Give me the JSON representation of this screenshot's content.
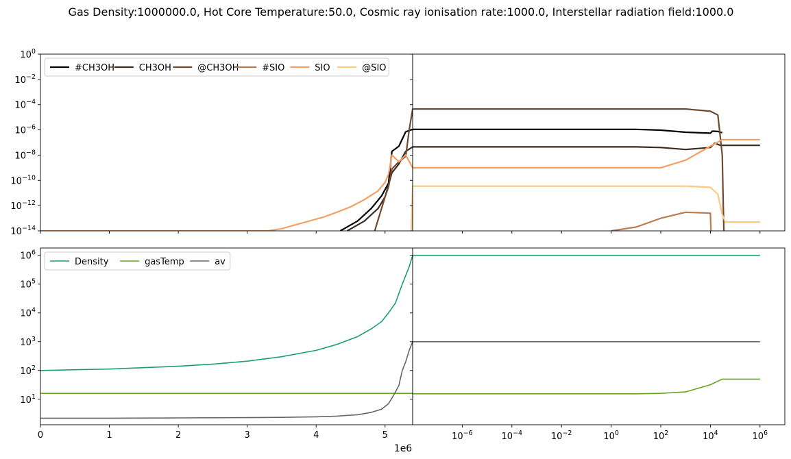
{
  "figure": {
    "title": "Gas Density:1000000.0, Hot Core Temperature:50.0, Cosmic ray ionisation rate:1000.0, Interstellar radiation field:1000.0",
    "x_offset_label": "1e6"
  },
  "chart_data": [
    {
      "panel": "top-left",
      "type": "line",
      "x_scale": "linear",
      "y_scale": "log",
      "xlim": [
        0,
        5.4
      ],
      "x_unit_multiplier": "1e6",
      "ylim": [
        1e-14,
        1
      ],
      "yticks": [
        "10^0",
        "10^-2",
        "10^-4",
        "10^-6",
        "10^-8",
        "10^-10",
        "10^-12",
        "10^-14"
      ],
      "legend": {
        "placement": "top-left",
        "columns": 6
      },
      "series": [
        {
          "name": "#CH3OH",
          "color": "#000000",
          "x": [
            4.35,
            4.6,
            4.8,
            4.95,
            5.05,
            5.1,
            5.2,
            5.3,
            5.4
          ],
          "y": [
            1e-14,
            6e-14,
            6e-13,
            6e-12,
            6e-11,
            2e-08,
            5e-08,
            7e-07,
            1.1e-06
          ]
        },
        {
          "name": "CH3OH",
          "color": "#3b2a1e",
          "x": [
            4.45,
            4.7,
            4.9,
            5.0,
            5.1,
            5.2,
            5.3,
            5.4
          ],
          "y": [
            1e-14,
            6e-14,
            6e-13,
            5e-12,
            4e-10,
            2e-09,
            2e-08,
            4.5e-08
          ]
        },
        {
          "name": "@CH3OH",
          "color": "#6f4a32",
          "x": [
            4.85,
            5.0,
            5.05,
            5.1,
            5.2,
            5.3,
            5.35,
            5.4
          ],
          "y": [
            1e-14,
            5e-12,
            3e-11,
            8e-10,
            3e-09,
            8e-09,
            1e-06,
            4.5e-05
          ]
        },
        {
          "name": "#SIO",
          "color": "#b87a4f",
          "x": [],
          "y": []
        },
        {
          "name": "SIO",
          "color": "#f2a064",
          "x": [
            0,
            3.3,
            3.5,
            3.7,
            3.9,
            4.1,
            4.3,
            4.5,
            4.7,
            4.9,
            5.0,
            5.05,
            5.1,
            5.2,
            5.3,
            5.4
          ],
          "y": [
            1e-14,
            1e-14,
            1.5e-14,
            3e-14,
            6e-14,
            1.2e-13,
            3e-13,
            8e-13,
            3e-12,
            1.5e-11,
            7e-11,
            3e-10,
            1e-08,
            3e-09,
            1e-08,
            1e-09
          ]
        },
        {
          "name": "@SIO",
          "color": "#fbc980",
          "x": [
            5.38,
            5.4
          ],
          "y": [
            1e-14,
            3.5e-11
          ]
        }
      ]
    },
    {
      "panel": "top-right",
      "type": "line",
      "x_scale": "log",
      "y_scale": "log",
      "xlim": [
        1e-08,
        10000000.0
      ],
      "ylim": [
        1e-14,
        1
      ],
      "series": [
        {
          "name": "#CH3OH",
          "color": "#000000",
          "x": [
            1e-08,
            10.0,
            100.0,
            1000.0,
            10000.0,
            12000.0,
            20000.0,
            30000.0
          ],
          "y": [
            1.1e-06,
            1.1e-06,
            9.5e-07,
            6.5e-07,
            5.5e-07,
            8e-07,
            7.5e-07,
            6e-07
          ]
        },
        {
          "name": "CH3OH",
          "color": "#3b2a1e",
          "x": [
            1e-08,
            10.0,
            100.0,
            1000.0,
            10000.0,
            15000.0,
            25000.0,
            1000000.0
          ],
          "y": [
            4.5e-08,
            4.5e-08,
            4e-08,
            2.8e-08,
            4e-08,
            9e-08,
            6e-08,
            6e-08
          ]
        },
        {
          "name": "@CH3OH",
          "color": "#6f4a32",
          "x": [
            1e-08,
            1000.0,
            10000.0,
            20000.0,
            30000.0,
            33000.0,
            35000.0
          ],
          "y": [
            4.5e-05,
            4.5e-05,
            3e-05,
            1.5e-05,
            1e-08,
            1e-12,
            1e-14
          ]
        },
        {
          "name": "#SIO",
          "color": "#b87a4f",
          "x": [
            1,
            10.0,
            100.0,
            1000.0,
            10000.0,
            10500.0
          ],
          "y": [
            1e-14,
            2e-14,
            1e-13,
            3e-13,
            2.5e-13,
            1e-14
          ]
        },
        {
          "name": "SIO",
          "color": "#f2a064",
          "x": [
            1e-08,
            100.0,
            1000.0,
            10000.0,
            30000.0,
            1000000.0
          ],
          "y": [
            1e-09,
            1e-09,
            4e-09,
            5e-08,
            1.7e-07,
            1.7e-07
          ]
        },
        {
          "name": "@SIO",
          "color": "#fbc980",
          "x": [
            1e-08,
            1000.0,
            10000.0,
            20000.0,
            30000.0,
            40000.0,
            1000000.0
          ],
          "y": [
            3.5e-11,
            3.5e-11,
            2.8e-11,
            8e-12,
            2e-13,
            5e-14,
            5e-14
          ]
        }
      ]
    },
    {
      "panel": "bottom-left",
      "type": "line",
      "x_scale": "linear",
      "y_scale": "log",
      "xlim": [
        0,
        5.4
      ],
      "x_unit_multiplier": "1e6",
      "xticks": [
        "0",
        "1",
        "2",
        "3",
        "4",
        "5"
      ],
      "ylim": [
        1.3,
        1800000.0
      ],
      "yticks": [
        "10^1",
        "10^2",
        "10^3",
        "10^4",
        "10^5",
        "10^6"
      ],
      "legend": {
        "placement": "top-left",
        "columns": 3
      },
      "series": [
        {
          "name": "Density",
          "color": "#1b9e77",
          "x": [
            0,
            1,
            2,
            2.5,
            3,
            3.5,
            4,
            4.3,
            4.6,
            4.8,
            4.95,
            5.05,
            5.15,
            5.25,
            5.35,
            5.4
          ],
          "y": [
            100,
            112,
            140,
            165,
            210,
            300,
            500,
            800,
            1500,
            2800,
            5000,
            10000.0,
            22000.0,
            100000.0,
            400000.0,
            1000000.0
          ]
        },
        {
          "name": "gasTemp",
          "color": "#66a61e",
          "x": [
            0,
            5.4
          ],
          "y": [
            16,
            16
          ]
        },
        {
          "name": "av",
          "color": "#666666",
          "x": [
            0,
            1,
            2,
            3,
            3.5,
            4,
            4.3,
            4.6,
            4.8,
            4.95,
            5.05,
            5.1,
            5.15,
            5.2,
            5.25,
            5.3,
            5.35,
            5.4
          ],
          "y": [
            2.2,
            2.2,
            2.25,
            2.3,
            2.35,
            2.45,
            2.6,
            2.9,
            3.5,
            4.5,
            7,
            11,
            18,
            30,
            100,
            200,
            500,
            1000
          ]
        }
      ]
    },
    {
      "panel": "bottom-right",
      "type": "line",
      "x_scale": "log",
      "y_scale": "log",
      "xlim": [
        1e-08,
        10000000.0
      ],
      "xticks": [
        "10^-6",
        "10^-4",
        "10^-2",
        "10^0",
        "10^2",
        "10^4",
        "10^6"
      ],
      "ylim": [
        1.3,
        1800000.0
      ],
      "series": [
        {
          "name": "Density",
          "color": "#1b9e77",
          "x": [
            1e-08,
            1000000.0
          ],
          "y": [
            1000000.0,
            1000000.0
          ]
        },
        {
          "name": "gasTemp",
          "color": "#66a61e",
          "x": [
            1e-08,
            10.0,
            100.0,
            1000.0,
            10000.0,
            30000.0,
            1000000.0
          ],
          "y": [
            15.5,
            15.5,
            16,
            18,
            32,
            50,
            50
          ]
        },
        {
          "name": "av",
          "color": "#666666",
          "x": [
            1e-08,
            1000000.0
          ],
          "y": [
            1000,
            1000
          ]
        }
      ]
    }
  ]
}
